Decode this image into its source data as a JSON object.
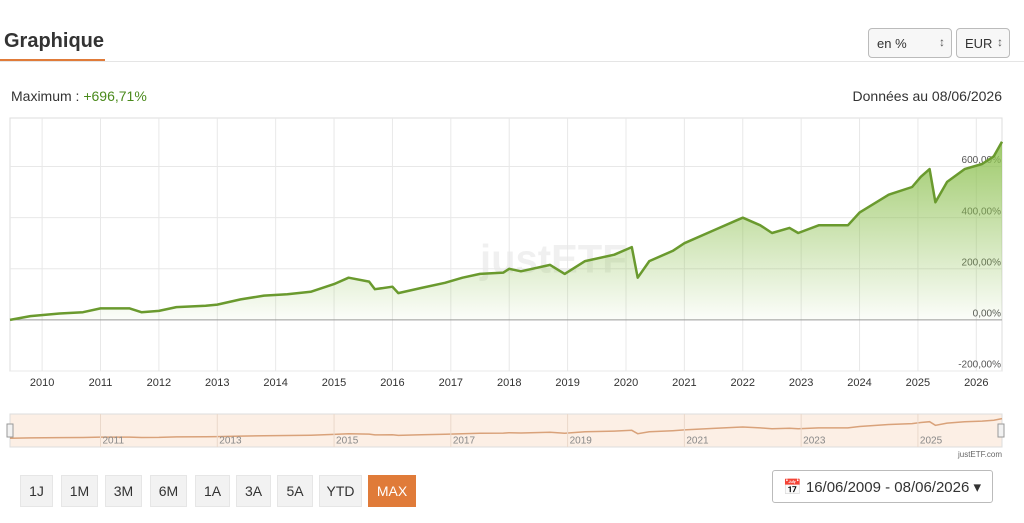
{
  "header": {
    "title": "Graphique",
    "unit_select": "en %",
    "currency_select": "EUR",
    "maximum_caption": "Maximum :",
    "maximum_value": "+696,71%",
    "date_caption": "Données au 08/06/2026"
  },
  "chart_data": {
    "type": "line",
    "color": "#6a9a2e",
    "grid": true,
    "x": [
      2009.45,
      2009.8,
      2010.3,
      2010.7,
      2011.0,
      2011.5,
      2011.7,
      2012.0,
      2012.3,
      2012.8,
      2013.0,
      2013.4,
      2013.8,
      2014.2,
      2014.6,
      2015.0,
      2015.25,
      2015.6,
      2015.7,
      2016.0,
      2016.1,
      2016.5,
      2016.9,
      2017.2,
      2017.5,
      2017.9,
      2018.0,
      2018.2,
      2018.7,
      2018.95,
      2019.3,
      2019.8,
      2020.1,
      2020.2,
      2020.4,
      2020.8,
      2021.0,
      2021.5,
      2021.9,
      2022.0,
      2022.3,
      2022.5,
      2022.8,
      2022.95,
      2023.3,
      2023.8,
      2024.0,
      2024.5,
      2024.9,
      2025.05,
      2025.2,
      2025.3,
      2025.5,
      2025.8,
      2026.1,
      2026.3,
      2026.44
    ],
    "values": [
      0,
      15,
      25,
      30,
      45,
      45,
      30,
      35,
      50,
      55,
      60,
      80,
      95,
      100,
      110,
      140,
      165,
      150,
      120,
      130,
      105,
      125,
      145,
      165,
      180,
      185,
      200,
      190,
      215,
      180,
      230,
      255,
      285,
      165,
      230,
      270,
      300,
      350,
      390,
      400,
      370,
      340,
      360,
      340,
      370,
      370,
      420,
      490,
      520,
      560,
      590,
      460,
      540,
      590,
      610,
      640,
      696.71
    ],
    "xlim": [
      2009.45,
      2026.44
    ],
    "xticks": [
      2010,
      2011,
      2012,
      2013,
      2014,
      2015,
      2016,
      2017,
      2018,
      2019,
      2020,
      2021,
      2022,
      2023,
      2024,
      2025,
      2026
    ],
    "ylim": [
      -200,
      790
    ],
    "yticks": [
      {
        "value": -200,
        "label": "-200,00%"
      },
      {
        "value": 0,
        "label": "0,00%"
      },
      {
        "value": 200,
        "label": "200,00%"
      },
      {
        "value": 400,
        "label": "400,00%"
      },
      {
        "value": 600,
        "label": "600,00%"
      }
    ],
    "watermark": "justETF",
    "navigator_ticks": [
      2011,
      2013,
      2015,
      2017,
      2019,
      2021,
      2023,
      2025
    ],
    "credit": "justETF.com"
  },
  "controls": {
    "periods": [
      "1J",
      "1M",
      "3M",
      "6M",
      "1A",
      "3A",
      "5A",
      "YTD",
      "MAX"
    ],
    "active_period": "MAX",
    "date_range": "16/06/2009 - 08/06/2026"
  }
}
